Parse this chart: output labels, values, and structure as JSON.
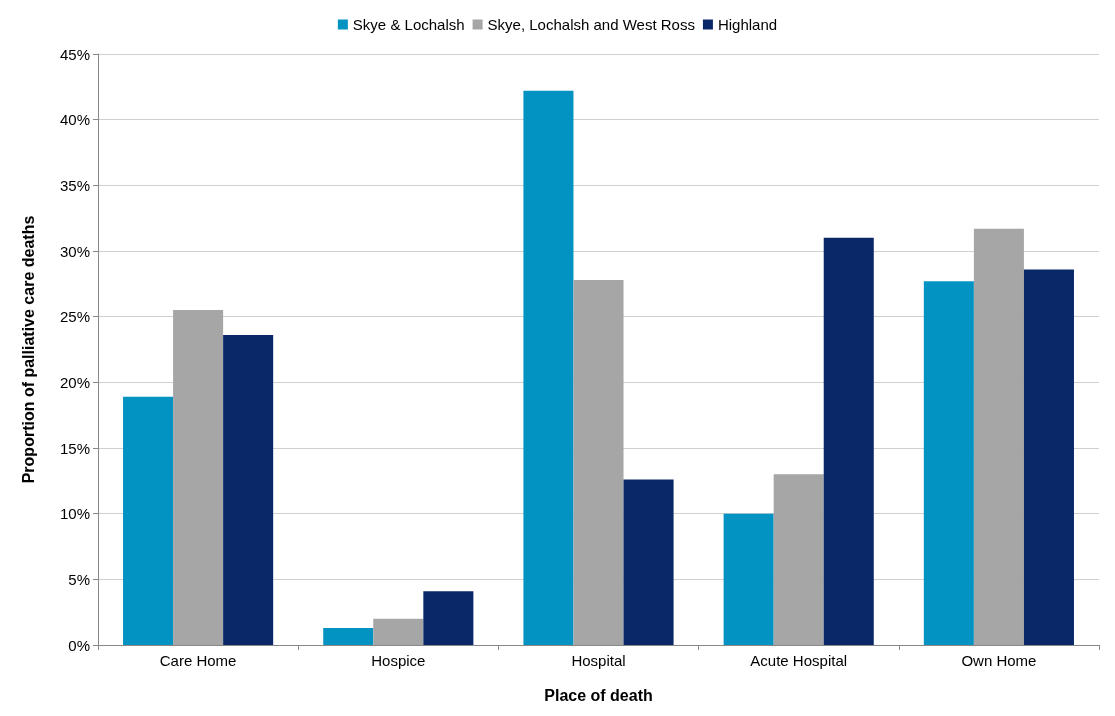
{
  "chart_data": {
    "type": "bar",
    "xlabel": "Place of death",
    "ylabel": "Proportion of palliative care deaths",
    "categories": [
      "Care Home",
      "Hospice",
      "Hospital",
      "Acute Hospital",
      "Own Home"
    ],
    "series": [
      {
        "name": "Skye & Lochalsh",
        "color": "#0393c3",
        "values": [
          18.9,
          1.3,
          42.2,
          10.0,
          27.7
        ]
      },
      {
        "name": "Skye, Lochalsh and West Ross",
        "color": "#a6a6a6",
        "values": [
          25.5,
          2.0,
          27.8,
          13.0,
          31.7
        ]
      },
      {
        "name": "Highland",
        "color": "#0a2868",
        "values": [
          23.6,
          4.1,
          12.6,
          31.0,
          28.6
        ]
      }
    ],
    "ylim": [
      0,
      45
    ],
    "yticks": [
      {
        "value": 0,
        "label": "0%"
      },
      {
        "value": 5,
        "label": "5%"
      },
      {
        "value": 10,
        "label": "10%"
      },
      {
        "value": 15,
        "label": "15%"
      },
      {
        "value": 20,
        "label": "20%"
      },
      {
        "value": 25,
        "label": "25%"
      },
      {
        "value": 30,
        "label": "30%"
      },
      {
        "value": 35,
        "label": "35%"
      },
      {
        "value": 40,
        "label": "40%"
      },
      {
        "value": 45,
        "label": "45%"
      }
    ],
    "grid": "y",
    "legend": "top"
  }
}
